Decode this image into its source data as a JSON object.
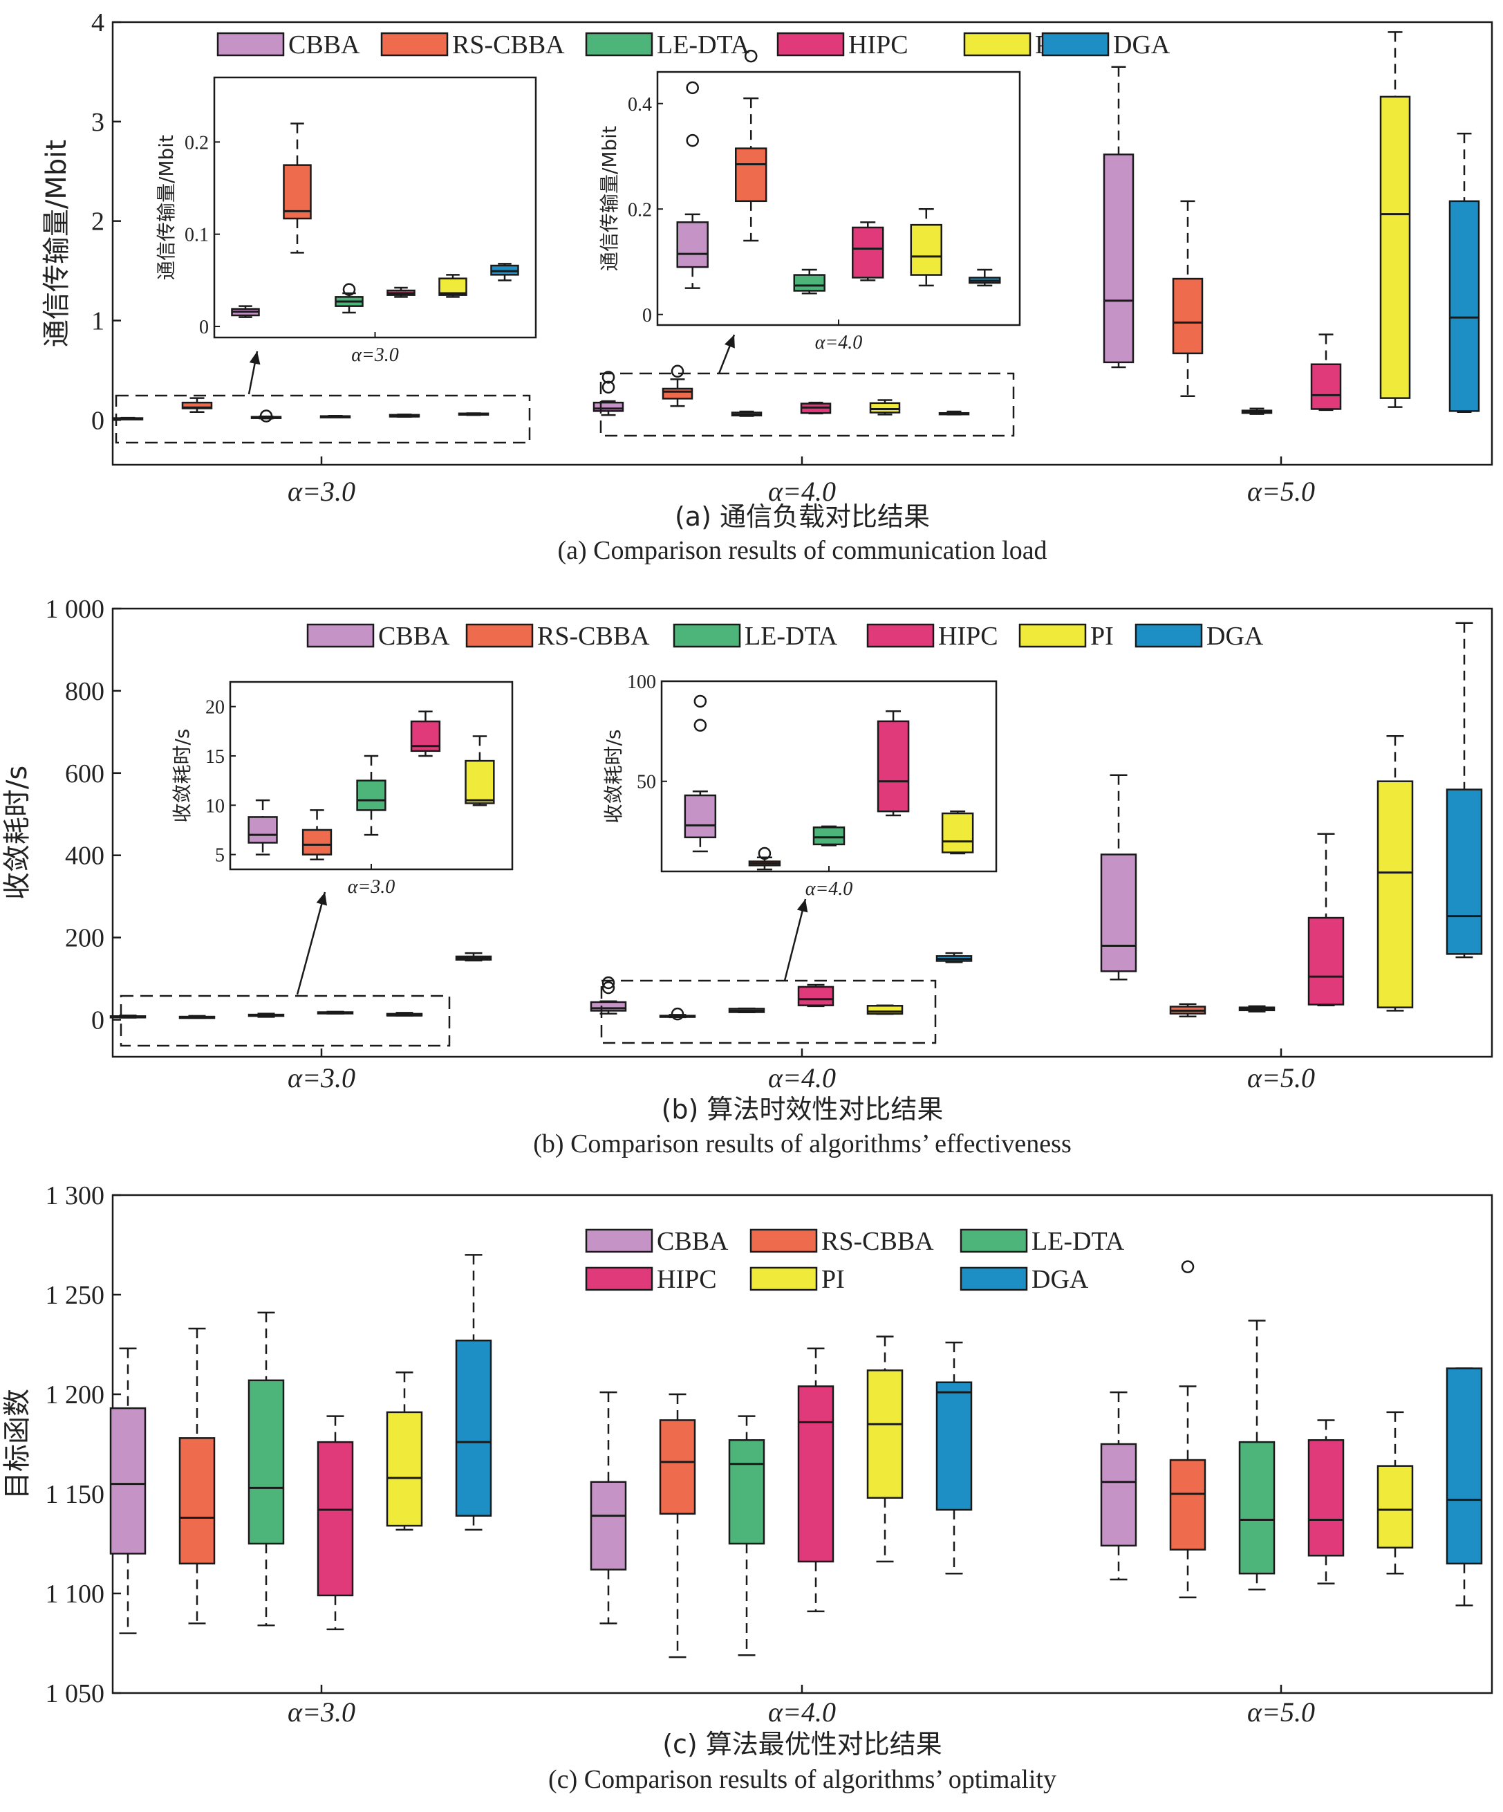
{
  "colors": {
    "CBBA": "#c693c6",
    "RS-CBBA": "#ef6b4d",
    "LE-DTA": "#4db57a",
    "HIPC": "#e03a7a",
    "PI": "#f0ea3a",
    "DGA": "#1e8fc4"
  },
  "chart_data": [
    {
      "id": "a",
      "type": "box",
      "ylabel": "通信传输量/Mbit",
      "ylim": [
        -0.45,
        4
      ],
      "yticks": [
        0,
        1,
        2,
        3,
        4
      ],
      "ytick_labels": [
        "0",
        "1",
        "2",
        "3",
        "4"
      ],
      "categories": [
        "α=3.0",
        "α=4.0",
        "α=5.0"
      ],
      "caption_cn": "(a) 通信负载对比结果",
      "caption_en": "(a) Comparison results of communication load",
      "legend_rows": 1,
      "series": [
        {
          "name": "CBBA",
          "boxes": [
            {
              "wl": 0.01,
              "q1": 0.012,
              "med": 0.016,
              "q3": 0.019,
              "wh": 0.022,
              "out": []
            },
            {
              "wl": 0.05,
              "q1": 0.09,
              "med": 0.115,
              "q3": 0.175,
              "wh": 0.19,
              "out": [
                0.33,
                0.43
              ]
            },
            {
              "wl": 0.53,
              "q1": 0.58,
              "med": 1.2,
              "q3": 2.67,
              "wh": 3.55,
              "out": []
            }
          ]
        },
        {
          "name": "RS-CBBA",
          "boxes": [
            {
              "wl": 0.08,
              "q1": 0.117,
              "med": 0.125,
              "q3": 0.175,
              "wh": 0.22,
              "out": []
            },
            {
              "wl": 0.14,
              "q1": 0.215,
              "med": 0.285,
              "q3": 0.315,
              "wh": 0.41,
              "out": [
                0.49
              ]
            },
            {
              "wl": 0.24,
              "q1": 0.67,
              "med": 0.98,
              "q3": 1.42,
              "wh": 2.2,
              "out": []
            }
          ]
        },
        {
          "name": "LE-DTA",
          "boxes": [
            {
              "wl": 0.015,
              "q1": 0.022,
              "med": 0.027,
              "q3": 0.032,
              "wh": 0.036,
              "out": [
                0.04
              ]
            },
            {
              "wl": 0.04,
              "q1": 0.045,
              "med": 0.055,
              "q3": 0.075,
              "wh": 0.085,
              "out": []
            },
            {
              "wl": 0.06,
              "q1": 0.07,
              "med": 0.085,
              "q3": 0.095,
              "wh": 0.115,
              "out": []
            }
          ]
        },
        {
          "name": "HIPC",
          "boxes": [
            {
              "wl": 0.032,
              "q1": 0.034,
              "med": 0.036,
              "q3": 0.039,
              "wh": 0.042,
              "out": []
            },
            {
              "wl": 0.065,
              "q1": 0.07,
              "med": 0.125,
              "q3": 0.165,
              "wh": 0.175,
              "out": []
            },
            {
              "wl": 0.1,
              "q1": 0.11,
              "med": 0.25,
              "q3": 0.56,
              "wh": 0.86,
              "out": []
            }
          ]
        },
        {
          "name": "PI",
          "boxes": [
            {
              "wl": 0.032,
              "q1": 0.034,
              "med": 0.036,
              "q3": 0.052,
              "wh": 0.056,
              "out": []
            },
            {
              "wl": 0.055,
              "q1": 0.075,
              "med": 0.11,
              "q3": 0.17,
              "wh": 0.2,
              "out": []
            },
            {
              "wl": 0.13,
              "q1": 0.22,
              "med": 2.07,
              "q3": 3.25,
              "wh": 3.9,
              "out": []
            }
          ]
        },
        {
          "name": "DGA",
          "boxes": [
            {
              "wl": 0.05,
              "q1": 0.056,
              "med": 0.06,
              "q3": 0.066,
              "wh": 0.068,
              "out": []
            },
            {
              "wl": 0.055,
              "q1": 0.06,
              "med": 0.064,
              "q3": 0.07,
              "wh": 0.085,
              "out": []
            },
            {
              "wl": 0.08,
              "q1": 0.09,
              "med": 1.03,
              "q3": 2.2,
              "wh": 2.88,
              "out": []
            }
          ]
        }
      ],
      "insets": [
        {
          "group": 0,
          "ylabel": "通信传输量/Mbit",
          "ylim": [
            -0.012,
            0.27
          ],
          "yticks": [
            0,
            0.1,
            0.2
          ],
          "ytick_labels": [
            "0",
            "0.1",
            "0.2"
          ],
          "xlabel": "α=3.0"
        },
        {
          "group": 1,
          "ylabel": "通信传输量/Mbit",
          "ylim": [
            -0.02,
            0.46
          ],
          "yticks": [
            0,
            0.2,
            0.4
          ],
          "ytick_labels": [
            "0",
            "0.2",
            "0.4"
          ],
          "xlabel": "α=4.0"
        }
      ]
    },
    {
      "id": "b",
      "type": "box",
      "ylabel": "收敛耗时/s",
      "ylim": [
        -90,
        1000
      ],
      "yticks": [
        0,
        200,
        400,
        600,
        800,
        1000
      ],
      "ytick_labels": [
        "0",
        "200",
        "400",
        "600",
        "800",
        "1 000"
      ],
      "categories": [
        "α=3.0",
        "α=4.0",
        "α=5.0"
      ],
      "caption_cn": "(b) 算法时效性对比结果",
      "caption_en": "(b) Comparison results of algorithms’ effectiveness",
      "legend_rows": 1,
      "series": [
        {
          "name": "CBBA",
          "boxes": [
            {
              "wl": 5,
              "q1": 6.2,
              "med": 7,
              "q3": 8.8,
              "wh": 10.5,
              "out": []
            },
            {
              "wl": 15,
              "q1": 22,
              "med": 28,
              "q3": 43,
              "wh": 45,
              "out": [
                78,
                90
              ]
            },
            {
              "wl": 98,
              "q1": 118,
              "med": 180,
              "q3": 402,
              "wh": 595,
              "out": []
            }
          ]
        },
        {
          "name": "RS-CBBA",
          "boxes": [
            {
              "wl": 4.5,
              "q1": 5,
              "med": 6,
              "q3": 7.5,
              "wh": 9.5,
              "out": []
            },
            {
              "wl": 6,
              "q1": 8,
              "med": 9,
              "q3": 10,
              "wh": 12,
              "out": [
                14
              ]
            },
            {
              "wl": 8,
              "q1": 15,
              "med": 22,
              "q3": 32,
              "wh": 38,
              "out": []
            }
          ]
        },
        {
          "name": "LE-DTA",
          "boxes": [
            {
              "wl": 7,
              "q1": 9.5,
              "med": 10.5,
              "q3": 12.5,
              "wh": 15,
              "out": []
            },
            {
              "wl": 18,
              "q1": 18.5,
              "med": 22,
              "q3": 27,
              "wh": 27.5,
              "out": []
            },
            {
              "wl": 20,
              "q1": 23,
              "med": 26,
              "q3": 30,
              "wh": 33,
              "out": []
            }
          ]
        },
        {
          "name": "HIPC",
          "boxes": [
            {
              "wl": 15,
              "q1": 15.5,
              "med": 16,
              "q3": 18.5,
              "wh": 19.5,
              "out": []
            },
            {
              "wl": 33,
              "q1": 35,
              "med": 50,
              "q3": 80,
              "wh": 85,
              "out": []
            },
            {
              "wl": 35,
              "q1": 37,
              "med": 105,
              "q3": 248,
              "wh": 452,
              "out": []
            }
          ]
        },
        {
          "name": "PI",
          "boxes": [
            {
              "wl": 10,
              "q1": 10.2,
              "med": 10.5,
              "q3": 14.5,
              "wh": 17,
              "out": []
            },
            {
              "wl": 14,
              "q1": 14.5,
              "med": 20,
              "q3": 34,
              "wh": 35,
              "out": []
            },
            {
              "wl": 22,
              "q1": 30,
              "med": 358,
              "q3": 580,
              "wh": 690,
              "out": []
            }
          ]
        },
        {
          "name": "DGA",
          "boxes": [
            {
              "wl": 144,
              "q1": 146,
              "med": 150,
              "q3": 154,
              "wh": 162,
              "out": []
            },
            {
              "wl": 140,
              "q1": 143,
              "med": 148,
              "q3": 155,
              "wh": 162,
              "out": []
            },
            {
              "wl": 152,
              "q1": 160,
              "med": 252,
              "q3": 560,
              "wh": 965,
              "out": []
            }
          ]
        }
      ],
      "insets": [
        {
          "group": 0,
          "ylabel": "收敛耗时/s",
          "ylim": [
            3.5,
            22.5
          ],
          "yticks": [
            5,
            10,
            15,
            20
          ],
          "ytick_labels": [
            "5",
            "10",
            "15",
            "20"
          ],
          "xlabel": "α=3.0",
          "hide_series": [
            "DGA"
          ]
        },
        {
          "group": 1,
          "ylabel": "收敛耗时/s",
          "ylim": [
            5,
            100
          ],
          "yticks": [
            50,
            100
          ],
          "ytick_labels": [
            "50",
            "100"
          ],
          "xlabel": "α=4.0",
          "hide_series": [
            "DGA"
          ]
        }
      ]
    },
    {
      "id": "c",
      "type": "box",
      "ylabel": "目标函数",
      "ylim": [
        1050,
        1300
      ],
      "yticks": [
        1050,
        1100,
        1150,
        1200,
        1250,
        1300
      ],
      "ytick_labels": [
        "1 050",
        "1 100",
        "1 150",
        "1 200",
        "1 250",
        "1 300"
      ],
      "categories": [
        "α=3.0",
        "α=4.0",
        "α=5.0"
      ],
      "caption_cn": "(c) 算法最优性对比结果",
      "caption_en": "(c) Comparison results of algorithms’ optimality",
      "legend_rows": 2,
      "series": [
        {
          "name": "CBBA",
          "boxes": [
            {
              "wl": 1080,
              "q1": 1120,
              "med": 1155,
              "q3": 1193,
              "wh": 1223,
              "out": []
            },
            {
              "wl": 1085,
              "q1": 1112,
              "med": 1139,
              "q3": 1156,
              "wh": 1201,
              "out": []
            },
            {
              "wl": 1107,
              "q1": 1124,
              "med": 1156,
              "q3": 1175,
              "wh": 1201,
              "out": []
            }
          ]
        },
        {
          "name": "RS-CBBA",
          "boxes": [
            {
              "wl": 1085,
              "q1": 1115,
              "med": 1138,
              "q3": 1178,
              "wh": 1233,
              "out": []
            },
            {
              "wl": 1068,
              "q1": 1140,
              "med": 1166,
              "q3": 1187,
              "wh": 1200,
              "out": []
            },
            {
              "wl": 1098,
              "q1": 1122,
              "med": 1150,
              "q3": 1167,
              "wh": 1204,
              "out": [
                1264
              ]
            }
          ]
        },
        {
          "name": "LE-DTA",
          "boxes": [
            {
              "wl": 1084,
              "q1": 1125,
              "med": 1153,
              "q3": 1207,
              "wh": 1241,
              "out": []
            },
            {
              "wl": 1069,
              "q1": 1125,
              "med": 1165,
              "q3": 1177,
              "wh": 1189,
              "out": []
            },
            {
              "wl": 1102,
              "q1": 1110,
              "med": 1137,
              "q3": 1176,
              "wh": 1237,
              "out": []
            }
          ]
        },
        {
          "name": "HIPC",
          "boxes": [
            {
              "wl": 1082,
              "q1": 1099,
              "med": 1142,
              "q3": 1176,
              "wh": 1189,
              "out": []
            },
            {
              "wl": 1091,
              "q1": 1116,
              "med": 1186,
              "q3": 1204,
              "wh": 1223,
              "out": []
            },
            {
              "wl": 1105,
              "q1": 1119,
              "med": 1137,
              "q3": 1177,
              "wh": 1187,
              "out": []
            }
          ]
        },
        {
          "name": "PI",
          "boxes": [
            {
              "wl": 1132,
              "q1": 1134,
              "med": 1158,
              "q3": 1191,
              "wh": 1211,
              "out": []
            },
            {
              "wl": 1116,
              "q1": 1148,
              "med": 1185,
              "q3": 1212,
              "wh": 1229,
              "out": []
            },
            {
              "wl": 1110,
              "q1": 1123,
              "med": 1142,
              "q3": 1164,
              "wh": 1191,
              "out": []
            }
          ]
        },
        {
          "name": "DGA",
          "boxes": [
            {
              "wl": 1132,
              "q1": 1139,
              "med": 1176,
              "q3": 1227,
              "wh": 1270,
              "out": []
            },
            {
              "wl": 1110,
              "q1": 1142,
              "med": 1201,
              "q3": 1206,
              "wh": 1226,
              "out": []
            },
            {
              "wl": 1094,
              "q1": 1115,
              "med": 1147,
              "q3": 1213,
              "wh": 1213,
              "out": []
            }
          ]
        }
      ],
      "insets": []
    }
  ]
}
